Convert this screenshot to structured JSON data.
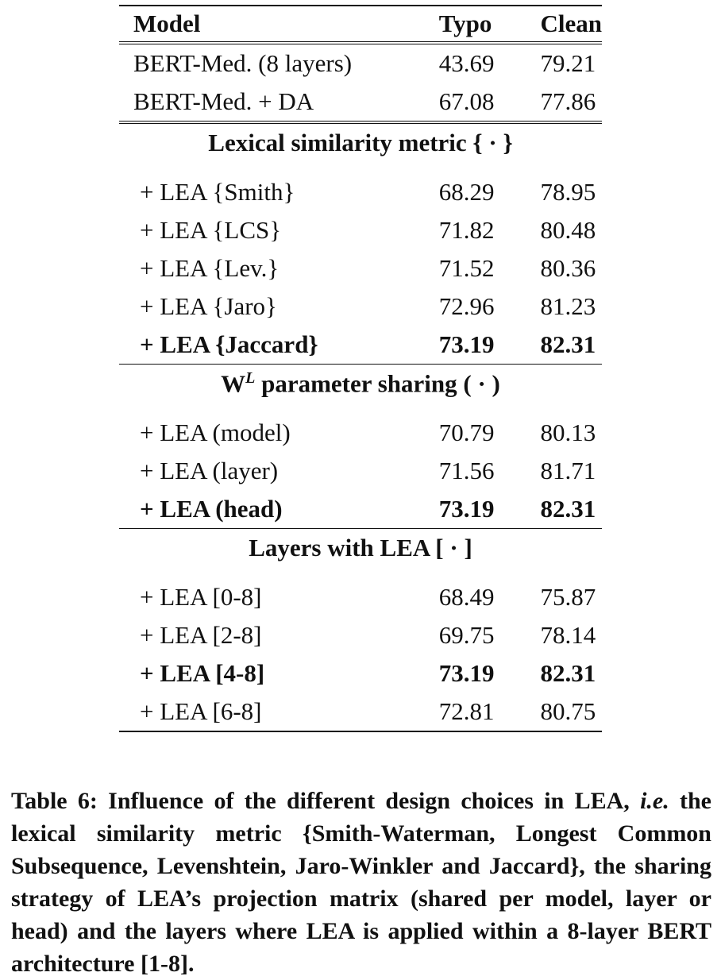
{
  "table": {
    "header": {
      "model": "Model",
      "typo": "Typo",
      "clean": "Clean"
    },
    "baselines": [
      {
        "model": "BERT-Med. (8 layers)",
        "typo": "43.69",
        "clean": "79.21"
      },
      {
        "model": "BERT-Med. + DA",
        "typo": "67.08",
        "clean": "77.86"
      }
    ],
    "sections": [
      {
        "title": "Lexical similarity metric { · }",
        "rows": [
          {
            "model": "+ LEA {Smith}",
            "typo": "68.29",
            "clean": "78.95"
          },
          {
            "model": "+ LEA {LCS}",
            "typo": "71.82",
            "clean": "80.48"
          },
          {
            "model": "+ LEA {Lev.}",
            "typo": "71.52",
            "clean": "80.36"
          },
          {
            "model": "+ LEA {Jaro}",
            "typo": "72.96",
            "clean": "81.23"
          },
          {
            "model": "+ LEA {Jaccard}",
            "typo": "73.19",
            "clean": "82.31"
          }
        ]
      },
      {
        "title_main": "W",
        "title_sup": "L",
        "title_rest": " parameter sharing ( · )",
        "rows": [
          {
            "model": "+ LEA (model)",
            "typo": "70.79",
            "clean": "80.13"
          },
          {
            "model": "+ LEA (layer)",
            "typo": "71.56",
            "clean": "81.71"
          },
          {
            "model": "+ LEA (head)",
            "typo": "73.19",
            "clean": "82.31"
          }
        ]
      },
      {
        "title": "Layers with LEA [ · ]",
        "rows": [
          {
            "model": "+ LEA [0-8]",
            "typo": "68.49",
            "clean": "75.87"
          },
          {
            "model": "+ LEA [2-8]",
            "typo": "69.75",
            "clean": "78.14"
          },
          {
            "model": "+ LEA [4-8]",
            "typo": "73.19",
            "clean": "82.31"
          },
          {
            "model": "+ LEA [6-8]",
            "typo": "72.81",
            "clean": "80.75"
          }
        ]
      }
    ]
  },
  "caption": {
    "p1": "Table 6: Influence of the different design choices in LEA, ",
    "ie": "i.e.",
    "p2": " the lexical similarity metric {Smith-Waterman, Longest Common Subsequence, Levenshtein, Jaro-Winkler and Jaccard}, the sharing strategy of LEA’s projection matrix (shared per model, layer or head) and the layers where LEA is applied within a 8-layer BERT architecture [1-8]."
  }
}
